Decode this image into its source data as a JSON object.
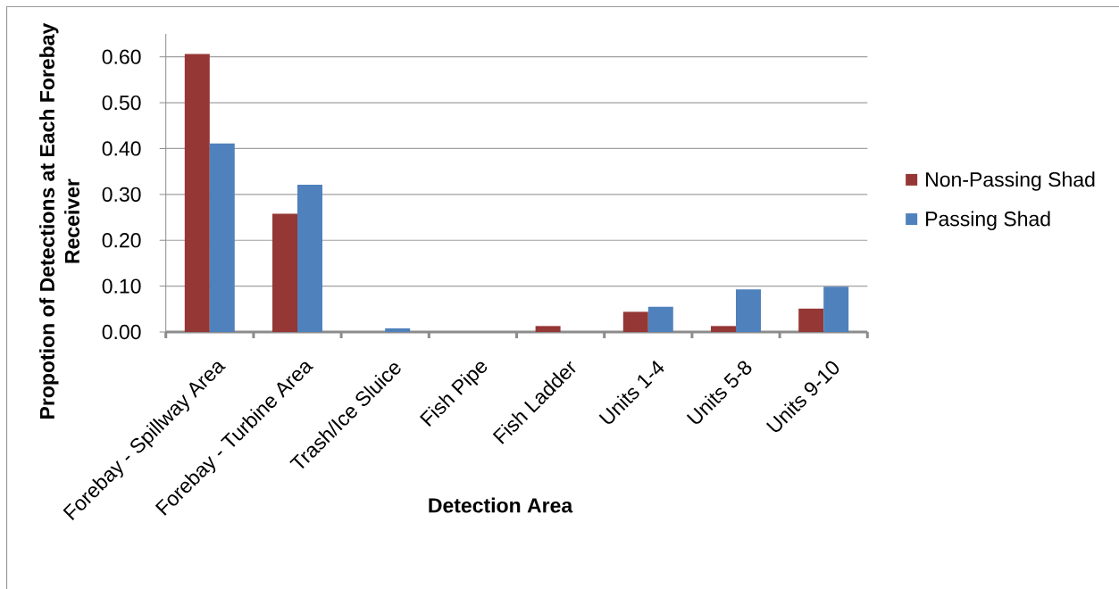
{
  "chart_data": {
    "type": "bar",
    "xlabel": "Detection Area",
    "ylabel": "Propotion of Detections at Each Forebay Receiver",
    "categories": [
      "Forebay - Spillway Area",
      "Forebay - Turbine Area",
      "Trash/Ice Sluice",
      "Fish Pipe",
      "Fish Ladder",
      "Units 1-4",
      "Units 5-8",
      "Units 9-10"
    ],
    "series": [
      {
        "name": "Non-Passing Shad",
        "color": "#953735",
        "values": [
          0.606,
          0.258,
          0,
          0,
          0.013,
          0.044,
          0.013,
          0.051
        ]
      },
      {
        "name": "Passing Shad",
        "color": "#4f81bd",
        "values": [
          0.411,
          0.321,
          0.008,
          0,
          0,
          0.055,
          0.093,
          0.099
        ]
      }
    ],
    "ylim": [
      0,
      0.65
    ],
    "yticks": [
      {
        "value": 0,
        "label": "0.00"
      },
      {
        "value": 0.1,
        "label": "0.10"
      },
      {
        "value": 0.2,
        "label": "0.20"
      },
      {
        "value": 0.3,
        "label": "0.30"
      },
      {
        "value": 0.4,
        "label": "0.40"
      },
      {
        "value": 0.5,
        "label": "0.50"
      },
      {
        "value": 0.6,
        "label": "0.60"
      }
    ],
    "grid": "y",
    "legend": "right"
  }
}
